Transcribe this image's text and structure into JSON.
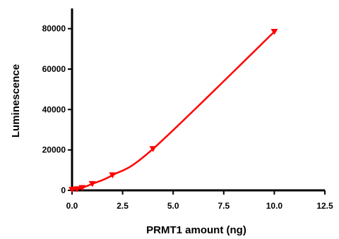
{
  "chart_data": {
    "type": "line",
    "xlabel": "PRMT1 amount (ng)",
    "ylabel": "Luminescence",
    "xlim": [
      0,
      12.5
    ],
    "ylim": [
      0,
      90000
    ],
    "x_ticks": [
      "0.0",
      "2.5",
      "5.0",
      "7.5",
      "10.0",
      "12.5"
    ],
    "x_tick_values": [
      0,
      2.5,
      5,
      7.5,
      10,
      12.5
    ],
    "y_ticks": [
      "0",
      "20000",
      "40000",
      "60000",
      "80000"
    ],
    "y_tick_values": [
      0,
      20000,
      40000,
      60000,
      80000
    ],
    "grid": false,
    "legend": "none",
    "series": [
      {
        "marker": "triangle-down",
        "color": "#ff0000",
        "points": [
          {
            "x": 0,
            "y": 300
          },
          {
            "x": 0.25,
            "y": 600
          },
          {
            "x": 0.5,
            "y": 1200
          },
          {
            "x": 1,
            "y": 3200
          },
          {
            "x": 2,
            "y": 7500
          },
          {
            "x": 4,
            "y": 20500
          },
          {
            "x": 10,
            "y": 78500
          }
        ]
      }
    ]
  }
}
